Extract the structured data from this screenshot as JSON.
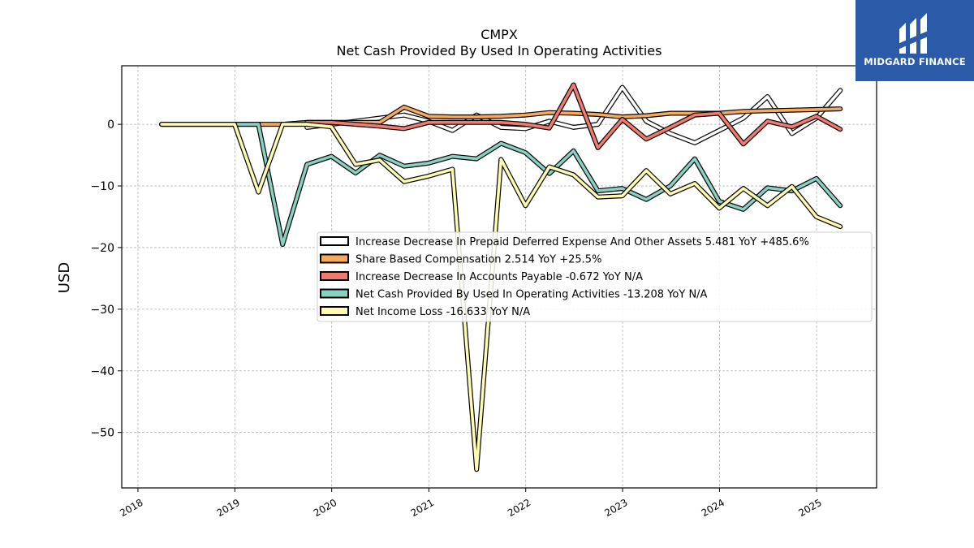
{
  "brand": {
    "name": "MIDGARD FINANCE",
    "logo_icon": "midgard-logo-icon",
    "background": "#2a5aa8"
  },
  "chart_data": {
    "type": "line",
    "title": "CMPX",
    "subtitle": "Net Cash Provided By Used In Operating Activities",
    "ylabel": "USD",
    "xlabel": "",
    "xlim": [
      "2017-11-01",
      "2025-08-15"
    ],
    "ylim": [
      -59,
      9.5
    ],
    "x_ticks": [
      "2018",
      "2019",
      "2020",
      "2021",
      "2022",
      "2023",
      "2024",
      "2025"
    ],
    "y_ticks": [
      0,
      -10,
      -20,
      -30,
      -40,
      -50
    ],
    "y_tick_labels": [
      "0",
      "−10",
      "−20",
      "−30",
      "−40",
      "−50"
    ],
    "grid": true,
    "legend_position": "center-right",
    "series": [
      {
        "name": "Increase Decrease In Prepaid Deferred Expense And Other Assets",
        "legend_label": "Increase Decrease In Prepaid Deferred Expense And Other Assets  5.481 YoY +485.6%",
        "color": "#ffffff",
        "x": [
          "2019-09-30",
          "2019-12-31",
          "2020-03-31",
          "2020-06-30",
          "2020-09-30",
          "2020-12-31",
          "2021-03-31",
          "2021-06-30",
          "2021-09-30",
          "2021-12-31",
          "2022-03-31",
          "2022-06-30",
          "2022-09-30",
          "2022-12-31",
          "2023-03-31",
          "2023-06-30",
          "2023-09-30",
          "2023-12-31",
          "2024-03-31",
          "2024-06-30",
          "2024-09-30",
          "2024-12-31",
          "2025-03-31"
        ],
        "values": [
          -0.5,
          0.0,
          0.5,
          1.0,
          1.5,
          0.5,
          -1.0,
          1.5,
          -0.5,
          -0.7,
          0.5,
          -0.5,
          0.0,
          6.0,
          0.5,
          -1.5,
          -3.0,
          -1.0,
          1.0,
          4.5,
          -1.5,
          1.0,
          5.5
        ]
      },
      {
        "name": "Share Based Compensation",
        "legend_label": "Share Based Compensation  2.514 YoY +25.5%",
        "color": "#f6a85b",
        "x": [
          "2018-03-31",
          "2018-06-30",
          "2018-09-30",
          "2018-12-31",
          "2019-03-31",
          "2019-06-30",
          "2019-09-30",
          "2019-12-31",
          "2020-03-31",
          "2020-06-30",
          "2020-09-30",
          "2020-12-31",
          "2021-03-31",
          "2021-06-30",
          "2021-09-30",
          "2021-12-31",
          "2022-03-31",
          "2022-06-30",
          "2022-09-30",
          "2022-12-31",
          "2023-03-31",
          "2023-06-30",
          "2023-09-30",
          "2023-12-31",
          "2024-03-31",
          "2024-06-30",
          "2024-09-30",
          "2024-12-31",
          "2025-03-31"
        ],
        "values": [
          0,
          0,
          0,
          0,
          0,
          0,
          0.3,
          0.3,
          0.3,
          0.3,
          2.8,
          1.3,
          1.2,
          1.2,
          1.3,
          1.5,
          1.9,
          1.8,
          1.6,
          1.2,
          1.4,
          1.8,
          1.8,
          1.8,
          2.1,
          2.2,
          2.3,
          2.4,
          2.5
        ]
      },
      {
        "name": "Increase Decrease In Accounts Payable",
        "legend_label": "Increase Decrease In Accounts Payable  -0.672 YoY N/A",
        "color": "#f07a6e",
        "x": [
          "2019-09-30",
          "2019-12-31",
          "2020-03-31",
          "2020-06-30",
          "2020-09-30",
          "2020-12-31",
          "2021-03-31",
          "2021-06-30",
          "2021-09-30",
          "2021-12-31",
          "2022-03-31",
          "2022-06-30",
          "2022-09-30",
          "2022-12-31",
          "2023-03-31",
          "2023-06-30",
          "2023-09-30",
          "2023-12-31",
          "2024-03-31",
          "2024-06-30",
          "2024-09-30",
          "2024-12-31",
          "2025-03-31"
        ],
        "values": [
          0.3,
          0.3,
          0.0,
          -0.3,
          -0.7,
          0.3,
          0.3,
          0.3,
          0.3,
          0.0,
          -0.6,
          6.4,
          -3.8,
          0.8,
          -2.4,
          -0.5,
          1.5,
          1.8,
          -3.2,
          0.5,
          -0.4,
          1.3,
          -0.8
        ]
      },
      {
        "name": "Net Cash Provided By Used In Operating Activities",
        "legend_label": "Net Cash Provided By Used In Operating Activities  -13.208 YoY N/A",
        "color": "#88d0c2",
        "x": [
          "2018-03-31",
          "2018-06-30",
          "2018-09-30",
          "2018-12-31",
          "2019-03-31",
          "2019-06-30",
          "2019-09-30",
          "2019-12-31",
          "2020-03-31",
          "2020-06-30",
          "2020-09-30",
          "2020-12-31",
          "2021-03-31",
          "2021-06-30",
          "2021-09-30",
          "2021-12-31",
          "2022-03-31",
          "2022-06-30",
          "2022-09-30",
          "2022-12-31",
          "2023-03-31",
          "2023-06-30",
          "2023-09-30",
          "2023-12-31",
          "2024-03-31",
          "2024-06-30",
          "2024-09-30",
          "2024-12-31",
          "2025-03-31"
        ],
        "values": [
          0,
          0,
          0,
          0,
          0,
          -19.5,
          -6.5,
          -5.2,
          -7.9,
          -5.0,
          -6.8,
          -6.3,
          -5.2,
          -5.6,
          -3.1,
          -4.6,
          -8.0,
          -4.3,
          -10.8,
          -10.4,
          -12.2,
          -10.0,
          -5.6,
          -12.5,
          -13.8,
          -10.3,
          -10.8,
          -8.8,
          -13.2
        ]
      },
      {
        "name": "Net Income Loss",
        "legend_label": "Net Income Loss  -16.633 YoY N/A",
        "color": "#fefab0",
        "x": [
          "2018-03-31",
          "2018-06-30",
          "2018-09-30",
          "2018-12-31",
          "2019-03-31",
          "2019-06-30",
          "2019-09-30",
          "2019-12-31",
          "2020-03-31",
          "2020-06-30",
          "2020-09-30",
          "2020-12-31",
          "2021-03-31",
          "2021-06-30",
          "2021-09-30",
          "2021-12-31",
          "2022-03-31",
          "2022-06-30",
          "2022-09-30",
          "2022-12-31",
          "2023-03-31",
          "2023-06-30",
          "2023-09-30",
          "2023-12-31",
          "2024-03-31",
          "2024-06-30",
          "2024-09-30",
          "2024-12-31",
          "2025-03-31"
        ],
        "values": [
          0,
          0,
          0,
          0,
          -11.0,
          0,
          0,
          -0.4,
          -6.5,
          -5.8,
          -9.3,
          -8.4,
          -7.3,
          -56.0,
          -5.7,
          -13.2,
          -6.9,
          -8.2,
          -11.8,
          -11.6,
          -7.5,
          -11.3,
          -9.6,
          -13.6,
          -10.4,
          -13.2,
          -10.1,
          -15.0,
          -16.6
        ]
      }
    ]
  }
}
